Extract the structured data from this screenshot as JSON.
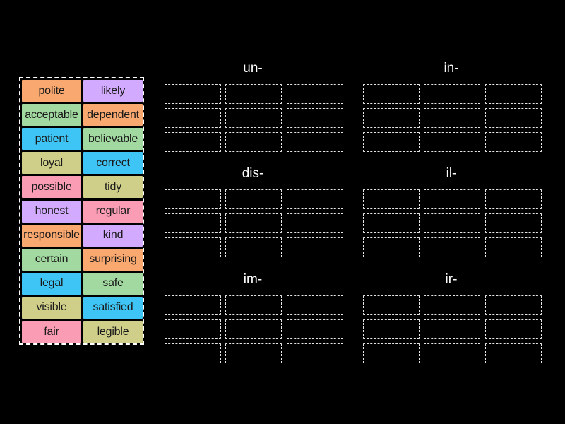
{
  "colors": {
    "orange": "#f9a86f",
    "purple": "#d2aaff",
    "green": "#a2d9a0",
    "blue": "#3fc5f5",
    "olive": "#cfcf8a",
    "pink": "#fa9cb4",
    "background": "#000000",
    "border": "#ffffff"
  },
  "words": [
    {
      "text": "polite",
      "color": "#f9a86f"
    },
    {
      "text": "likely",
      "color": "#d2aaff"
    },
    {
      "text": "acceptable",
      "color": "#a2d9a0"
    },
    {
      "text": "dependent",
      "color": "#f9a86f"
    },
    {
      "text": "patient",
      "color": "#3fc5f5"
    },
    {
      "text": "believable",
      "color": "#a2d9a0"
    },
    {
      "text": "loyal",
      "color": "#cfcf8a"
    },
    {
      "text": "correct",
      "color": "#3fc5f5"
    },
    {
      "text": "possible",
      "color": "#fa9cb4"
    },
    {
      "text": "tidy",
      "color": "#cfcf8a"
    },
    {
      "text": "honest",
      "color": "#d2aaff"
    },
    {
      "text": "regular",
      "color": "#fa9cb4"
    },
    {
      "text": "responsible",
      "color": "#f9a86f"
    },
    {
      "text": "kind",
      "color": "#d2aaff"
    },
    {
      "text": "certain",
      "color": "#a2d9a0"
    },
    {
      "text": "surprising",
      "color": "#f9a86f"
    },
    {
      "text": "legal",
      "color": "#3fc5f5"
    },
    {
      "text": "safe",
      "color": "#a2d9a0"
    },
    {
      "text": "visible",
      "color": "#cfcf8a"
    },
    {
      "text": "satisfied",
      "color": "#3fc5f5"
    },
    {
      "text": "fair",
      "color": "#fa9cb4"
    },
    {
      "text": "legible",
      "color": "#cfcf8a"
    }
  ],
  "groups": [
    {
      "title": "un-",
      "slot_count": 9
    },
    {
      "title": "in-",
      "slot_count": 9
    },
    {
      "title": "dis-",
      "slot_count": 9
    },
    {
      "title": "il-",
      "slot_count": 9
    },
    {
      "title": "im-",
      "slot_count": 9
    },
    {
      "title": "ir-",
      "slot_count": 9
    }
  ]
}
